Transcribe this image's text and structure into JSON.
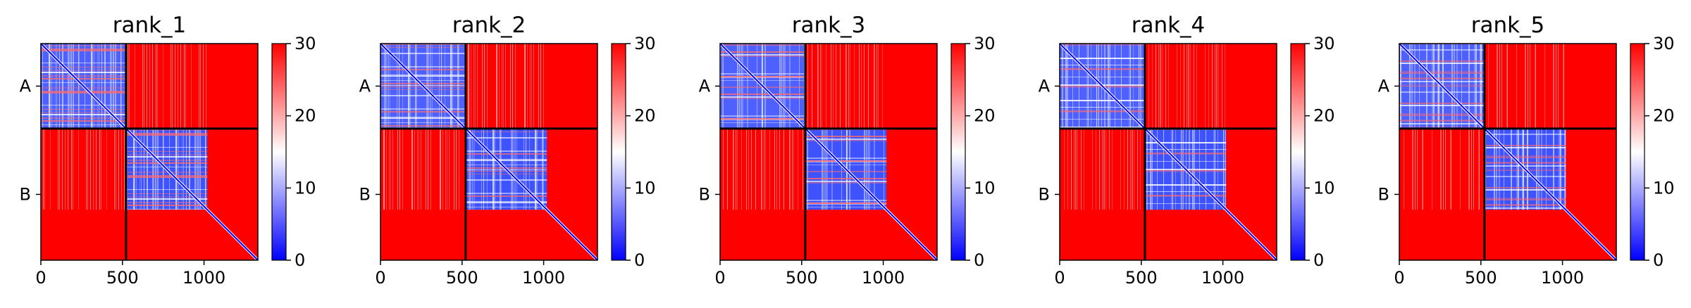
{
  "chart_data": [
    {
      "type": "heatmap",
      "title": "rank_1",
      "x_ticks": [
        0,
        500,
        1000
      ],
      "xlim": [
        0,
        1330
      ],
      "chain_labels": [
        "A",
        "B"
      ],
      "chain_lengths": [
        522,
        808
      ],
      "colorbar": {
        "min": 0,
        "max": 30,
        "ticks": [
          0,
          10,
          20,
          30
        ],
        "colors": [
          "#0000ff",
          "#ffffff",
          "#ff0000"
        ]
      }
    },
    {
      "type": "heatmap",
      "title": "rank_2",
      "x_ticks": [
        0,
        500,
        1000
      ],
      "xlim": [
        0,
        1330
      ],
      "chain_labels": [
        "A",
        "B"
      ],
      "chain_lengths": [
        522,
        808
      ],
      "colorbar": {
        "min": 0,
        "max": 30,
        "ticks": [
          0,
          10,
          20,
          30
        ],
        "colors": [
          "#0000ff",
          "#ffffff",
          "#ff0000"
        ]
      }
    },
    {
      "type": "heatmap",
      "title": "rank_3",
      "x_ticks": [
        0,
        500,
        1000
      ],
      "xlim": [
        0,
        1330
      ],
      "chain_labels": [
        "A",
        "B"
      ],
      "chain_lengths": [
        522,
        808
      ],
      "colorbar": {
        "min": 0,
        "max": 30,
        "ticks": [
          0,
          10,
          20,
          30
        ],
        "colors": [
          "#0000ff",
          "#ffffff",
          "#ff0000"
        ]
      }
    },
    {
      "type": "heatmap",
      "title": "rank_4",
      "x_ticks": [
        0,
        500,
        1000
      ],
      "xlim": [
        0,
        1330
      ],
      "chain_labels": [
        "A",
        "B"
      ],
      "chain_lengths": [
        522,
        808
      ],
      "colorbar": {
        "min": 0,
        "max": 30,
        "ticks": [
          0,
          10,
          20,
          30
        ],
        "colors": [
          "#0000ff",
          "#ffffff",
          "#ff0000"
        ]
      }
    },
    {
      "type": "heatmap",
      "title": "rank_5",
      "x_ticks": [
        0,
        500,
        1000
      ],
      "xlim": [
        0,
        1330
      ],
      "chain_labels": [
        "A",
        "B"
      ],
      "chain_lengths": [
        522,
        808
      ],
      "colorbar": {
        "min": 0,
        "max": 30,
        "ticks": [
          0,
          10,
          20,
          30
        ],
        "colors": [
          "#0000ff",
          "#ffffff",
          "#ff0000"
        ]
      }
    }
  ]
}
